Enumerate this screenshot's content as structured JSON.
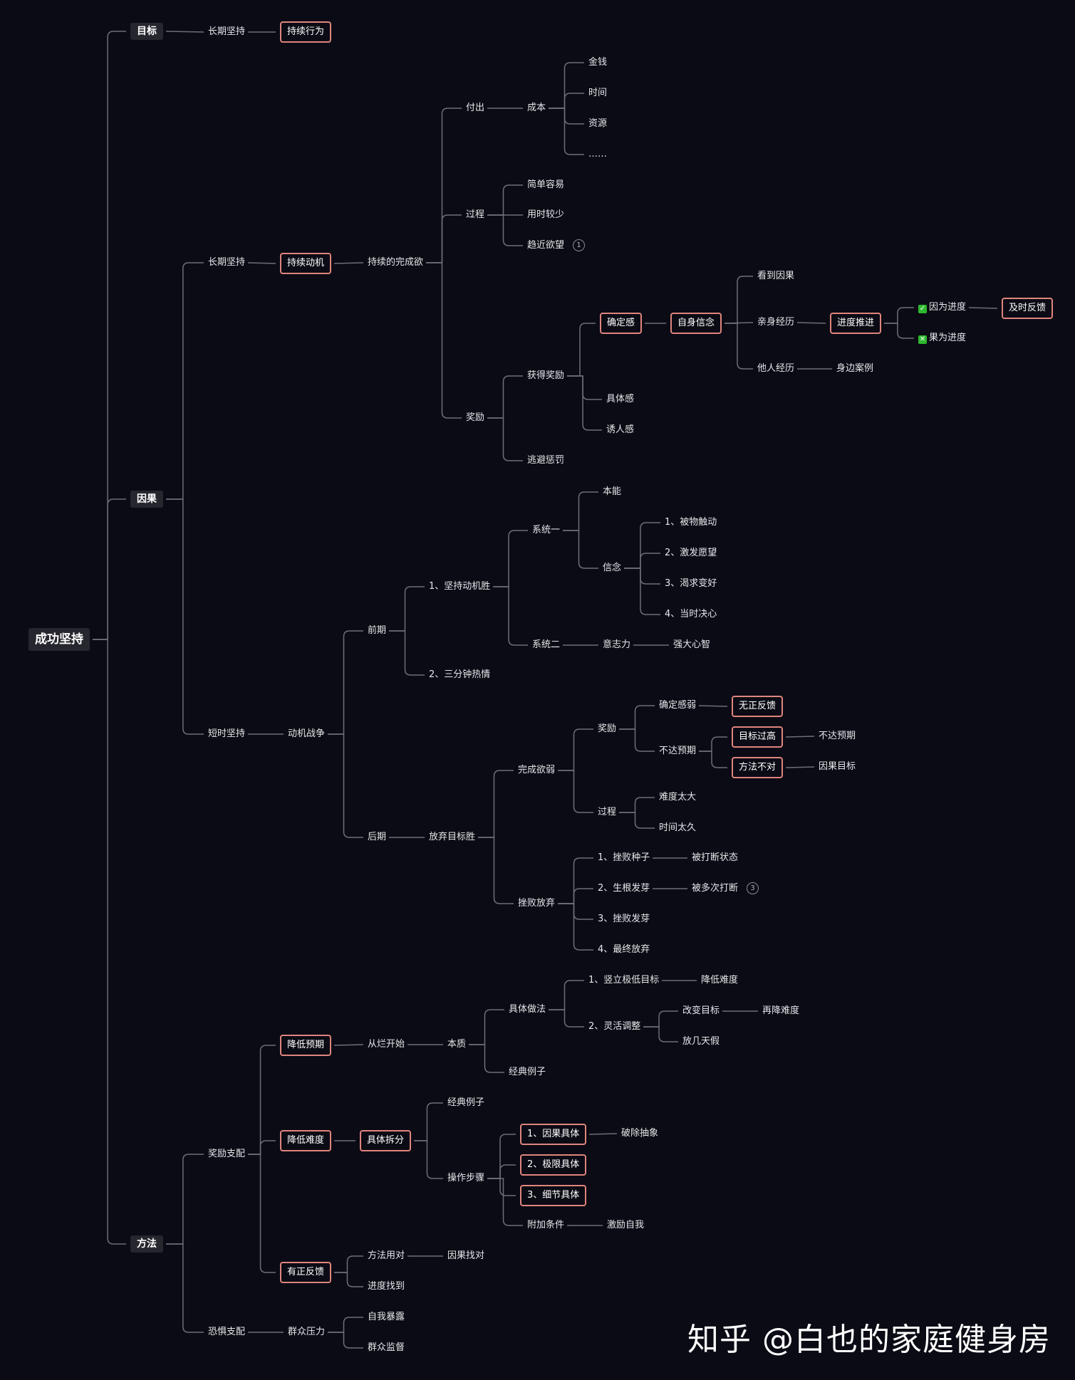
{
  "nodes": {
    "root": "成功坚持",
    "goal": "目标",
    "goal_long": "长期坚持",
    "goal_act": "持续行为",
    "cause": "因果",
    "cause_long": "长期坚持",
    "motive": "持续动机",
    "desire": "持续的完成欲",
    "pay": "付出",
    "cost": "成本",
    "money": "金钱",
    "time": "时间",
    "resource": "资源",
    "etc": "……",
    "process": "过程",
    "simple": "简单容易",
    "short_time": "用时较少",
    "near_desire": "趋近欲望",
    "badge1": "1",
    "reward": "奖励",
    "get_reward": "获得奖励",
    "certainty": "确定感",
    "self_belief": "自身信念",
    "see_cause": "看到因果",
    "self_exp": "亲身经历",
    "progress_push": "进度推进",
    "cause_progress": "因为进度",
    "effect_progress": "果为进度",
    "timely_feedback": "及时反馈",
    "other_exp": "他人经历",
    "near_case": "身边案例",
    "concrete": "具体感",
    "tempting": "诱人感",
    "avoid_punish": "逃避惩罚",
    "short_keep": "短时坚持",
    "motive_war": "动机战争",
    "early": "前期",
    "keep_win": "1、坚持动机胜",
    "sys1": "系统一",
    "instinct": "本能",
    "belief": "信念",
    "b1": "1、被物触动",
    "b2": "2、激发愿望",
    "b3": "3、渴求变好",
    "b4": "4、当时决心",
    "sys2": "系统二",
    "willpower": "意志力",
    "strong_mind": "强大心智",
    "three_min": "2、三分钟热情",
    "late": "后期",
    "quit_win": "放弃目标胜",
    "weak_desire": "完成欲弱",
    "late_reward": "奖励",
    "weak_cert": "确定感弱",
    "no_pos_fb": "无正反馈",
    "below_exp": "不达预期",
    "goal_high": "目标过高",
    "below_exp2": "不达预期",
    "wrong_method": "方法不对",
    "cause_goal": "因果目标",
    "late_process": "过程",
    "too_hard": "难度太大",
    "too_long": "时间太久",
    "frustrate": "挫败放弃",
    "f1": "1、挫败种子",
    "interrupted": "被打断状态",
    "f2": "2、生根发芽",
    "multi_interrupt": "被多次打断",
    "badge3": "3",
    "f3": "3、挫败发芽",
    "f4": "4、最终放弃",
    "method": "方法",
    "reward_drive": "奖励支配",
    "lower_exp": "降低预期",
    "from_bad": "从烂开始",
    "essence": "本质",
    "practice": "具体做法",
    "set_low": "1、竖立极低目标",
    "lower_diff": "降低难度",
    "flex_adjust": "2、灵活调整",
    "change_goal": "改变目标",
    "lower_again": "再降难度",
    "days_off": "放几天假",
    "classic1": "经典例子",
    "lower_diff2": "降低难度",
    "breakdown": "具体拆分",
    "classic2": "经典例子",
    "steps": "操作步骤",
    "s1": "1、因果具体",
    "break_abstract": "破除抽象",
    "s2": "2、极限具体",
    "s3": "3、细节具体",
    "extra": "附加条件",
    "motivate_self": "激励自我",
    "pos_fb": "有正反馈",
    "right_method": "方法用对",
    "find_cause": "因果找对",
    "find_progress": "进度找到",
    "fear_drive": "恐惧支配",
    "peer_pressure": "群众压力",
    "self_expose": "自我暴露",
    "public_watch": "群众监督"
  },
  "watermark": "知乎 @白也的家庭健身房",
  "colors": {
    "background": "#0b0b15",
    "edge": "#6e6e78",
    "highlight_border": "#e0857d",
    "check_green": "#2eb82e"
  }
}
